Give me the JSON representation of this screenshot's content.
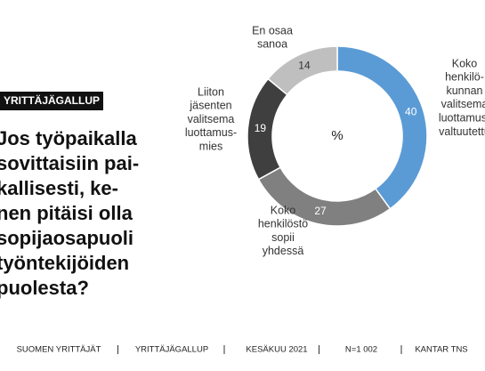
{
  "tag": "YRITTÄJÄGALLUP",
  "question": [
    "Jos työpaikalla",
    "sovittaisiin pai-",
    "kallisesti, ke-",
    "nen pitäisi olla",
    "sopijaosapuoli",
    "työntekijöiden",
    "puolesta?"
  ],
  "chart_data": {
    "type": "pie",
    "center_label": "%",
    "categories": [
      [
        "Koko",
        "henkilö-",
        "kunnan",
        "valitsema",
        "luottamus-",
        "valtuutettu"
      ],
      [
        "Koko",
        "henkilöstö",
        "sopii",
        "yhdessä"
      ],
      [
        "Liiton",
        "jäsenten",
        "valitsema",
        "luottamus-",
        "mies"
      ],
      [
        "En osaa",
        "sanoa"
      ]
    ],
    "values": [
      40,
      27,
      19,
      14
    ],
    "colors": [
      "#5b9bd5",
      "#808080",
      "#3f3f3f",
      "#bfbfbf"
    ]
  },
  "footer": [
    "SUOMEN YRITTÄJÄT",
    "YRITTÄJÄGALLUP",
    "KESÄKUU 2021",
    "N=1 002",
    "KANTAR TNS"
  ]
}
